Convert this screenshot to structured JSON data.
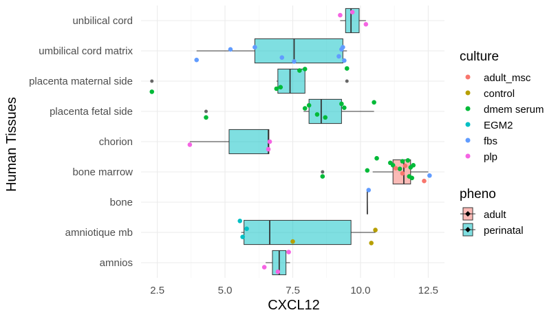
{
  "chart_data": {
    "type": "boxplot",
    "orientation": "horizontal",
    "xlabel": "CXCL12",
    "ylabel": "Human Tissues",
    "xlim": [
      1.9,
      13.1
    ],
    "x_ticks": [
      2.5,
      5.0,
      7.5,
      10.0,
      12.5
    ],
    "x_tick_labels": [
      "2.5",
      "5.0",
      "7.5",
      "10.0",
      "12.5"
    ],
    "grid": true,
    "legend_position": "right",
    "categories": [
      "amnios",
      "amniotique mb",
      "bone",
      "bone marrow",
      "chorion",
      "placenta fetal side",
      "placenta maternal side",
      "umbilical cord matrix",
      "unbilical cord"
    ],
    "pheno_legend": {
      "title": "pheno",
      "items": [
        {
          "label": "adult",
          "color": "#F8766D"
        },
        {
          "label": "perinatal",
          "color": "#00BFC4"
        }
      ]
    },
    "culture_legend": {
      "title": "culture",
      "items": [
        {
          "label": "adult_msc",
          "color": "#F8766D"
        },
        {
          "label": "control",
          "color": "#B79F00"
        },
        {
          "label": "dmem serum",
          "color": "#00BA38"
        },
        {
          "label": "EGM2",
          "color": "#00BFC4"
        },
        {
          "label": "fbs",
          "color": "#619CFF"
        },
        {
          "label": "plp",
          "color": "#F564E3"
        }
      ]
    },
    "boxes": [
      {
        "tissue": "amnios",
        "pheno": "perinatal",
        "min": 6.5,
        "q1": 6.75,
        "median": 7.0,
        "q3": 7.25,
        "max": 7.4
      },
      {
        "tissue": "amniotique mb",
        "pheno": "perinatal",
        "min": 5.6,
        "q1": 5.7,
        "median": 6.65,
        "q3": 9.65,
        "max": 10.55
      },
      {
        "tissue": "bone",
        "pheno": "perinatal",
        "min": 10.25,
        "q1": 10.25,
        "median": 10.25,
        "q3": 10.25,
        "max": 10.25
      },
      {
        "tissue": "bone marrow",
        "pheno": "adult",
        "min": 10.45,
        "q1": 11.2,
        "median": 11.6,
        "q3": 11.85,
        "max": 12.5
      },
      {
        "tissue": "chorion",
        "pheno": "perinatal",
        "min": 3.7,
        "q1": 5.15,
        "median": 6.6,
        "q3": 6.62,
        "max": 6.65
      },
      {
        "tissue": "placenta fetal side",
        "pheno": "perinatal",
        "min": 7.9,
        "q1": 8.1,
        "median": 8.55,
        "q3": 9.3,
        "max": 10.5
      },
      {
        "tissue": "placenta maternal side",
        "pheno": "perinatal",
        "min": 6.9,
        "q1": 6.95,
        "median": 7.4,
        "q3": 7.95,
        "max": 7.95
      },
      {
        "tissue": "umbilical cord matrix",
        "pheno": "perinatal",
        "min": 3.95,
        "q1": 6.1,
        "median": 7.55,
        "q3": 9.35,
        "max": 9.5
      },
      {
        "tissue": "unbilical cord",
        "pheno": "perinatal",
        "min": 9.25,
        "q1": 9.45,
        "median": 9.65,
        "q3": 9.95,
        "max": 10.2
      }
    ],
    "outliers": [
      {
        "tissue": "bone marrow",
        "x": 8.6
      },
      {
        "tissue": "placenta fetal side",
        "x": 4.3
      },
      {
        "tissue": "placenta maternal side",
        "x": 2.3
      },
      {
        "tissue": "placenta maternal side",
        "x": 9.5
      }
    ],
    "points": [
      {
        "tissue": "amnios",
        "culture": "plp",
        "x": 6.45,
        "dy": -0.15
      },
      {
        "tissue": "amnios",
        "culture": "plp",
        "x": 7.35,
        "dy": 0.35
      },
      {
        "tissue": "amnios",
        "culture": "plp",
        "x": 6.95,
        "dy": -0.3
      },
      {
        "tissue": "amniotique mb",
        "culture": "EGM2",
        "x": 5.55,
        "dy": 0.38
      },
      {
        "tissue": "amniotique mb",
        "culture": "EGM2",
        "x": 5.8,
        "dy": 0.12
      },
      {
        "tissue": "amniotique mb",
        "culture": "EGM2",
        "x": 5.65,
        "dy": -0.15
      },
      {
        "tissue": "amniotique mb",
        "culture": "control",
        "x": 7.5,
        "dy": -0.3
      },
      {
        "tissue": "amniotique mb",
        "culture": "control",
        "x": 10.55,
        "dy": 0.08
      },
      {
        "tissue": "amniotique mb",
        "culture": "control",
        "x": 10.4,
        "dy": -0.35
      },
      {
        "tissue": "bone",
        "culture": "fbs",
        "x": 10.3,
        "dy": 0.4
      },
      {
        "tissue": "bone marrow",
        "culture": "dmem serum",
        "x": 8.6,
        "dy": -0.15
      },
      {
        "tissue": "bone marrow",
        "culture": "dmem serum",
        "x": 10.25,
        "dy": 0.05
      },
      {
        "tissue": "bone marrow",
        "culture": "dmem serum",
        "x": 10.6,
        "dy": 0.45
      },
      {
        "tissue": "bone marrow",
        "culture": "dmem serum",
        "x": 11.1,
        "dy": 0.3
      },
      {
        "tissue": "bone marrow",
        "culture": "dmem serum",
        "x": 11.2,
        "dy": 0.22
      },
      {
        "tissue": "bone marrow",
        "culture": "dmem serum",
        "x": 11.45,
        "dy": 0.1
      },
      {
        "tissue": "bone marrow",
        "culture": "dmem serum",
        "x": 11.55,
        "dy": 0.35
      },
      {
        "tissue": "bone marrow",
        "culture": "dmem serum",
        "x": 11.75,
        "dy": 0.38
      },
      {
        "tissue": "bone marrow",
        "culture": "dmem serum",
        "x": 11.85,
        "dy": 0.15
      },
      {
        "tissue": "bone marrow",
        "culture": "dmem serum",
        "x": 11.95,
        "dy": 0.22
      },
      {
        "tissue": "bone marrow",
        "culture": "dmem serum",
        "x": 11.8,
        "dy": -0.15
      },
      {
        "tissue": "bone marrow",
        "culture": "dmem serum",
        "x": 11.9,
        "dy": -0.2
      },
      {
        "tissue": "bone marrow",
        "culture": "adult_msc",
        "x": 11.3,
        "dy": 0.12
      },
      {
        "tissue": "bone marrow",
        "culture": "adult_msc",
        "x": 11.55,
        "dy": -0.05
      },
      {
        "tissue": "bone marrow",
        "culture": "adult_msc",
        "x": 11.65,
        "dy": 0.2
      },
      {
        "tissue": "bone marrow",
        "culture": "adult_msc",
        "x": 12.35,
        "dy": -0.3
      },
      {
        "tissue": "bone marrow",
        "culture": "fbs",
        "x": 12.55,
        "dy": -0.12
      },
      {
        "tissue": "chorion",
        "culture": "plp",
        "x": 3.7,
        "dy": -0.1
      },
      {
        "tissue": "chorion",
        "culture": "plp",
        "x": 6.65,
        "dy": 0.0
      },
      {
        "tissue": "chorion",
        "culture": "plp",
        "x": 6.6,
        "dy": -0.25
      },
      {
        "tissue": "placenta fetal side",
        "culture": "dmem serum",
        "x": 4.3,
        "dy": -0.2
      },
      {
        "tissue": "placenta fetal side",
        "culture": "dmem serum",
        "x": 7.95,
        "dy": 0.1
      },
      {
        "tissue": "placenta fetal side",
        "culture": "dmem serum",
        "x": 8.1,
        "dy": 0.2
      },
      {
        "tissue": "placenta fetal side",
        "culture": "dmem serum",
        "x": 8.4,
        "dy": -0.1
      },
      {
        "tissue": "placenta fetal side",
        "culture": "dmem serum",
        "x": 8.7,
        "dy": -0.2
      },
      {
        "tissue": "placenta fetal side",
        "culture": "dmem serum",
        "x": 9.3,
        "dy": 0.25
      },
      {
        "tissue": "placenta fetal side",
        "culture": "dmem serum",
        "x": 9.4,
        "dy": 0.12
      },
      {
        "tissue": "placenta fetal side",
        "culture": "dmem serum",
        "x": 10.5,
        "dy": 0.3
      },
      {
        "tissue": "placenta maternal side",
        "culture": "dmem serum",
        "x": 2.3,
        "dy": -0.35
      },
      {
        "tissue": "placenta maternal side",
        "culture": "dmem serum",
        "x": 6.9,
        "dy": -0.25
      },
      {
        "tissue": "placenta maternal side",
        "culture": "dmem serum",
        "x": 7.05,
        "dy": -0.2
      },
      {
        "tissue": "placenta maternal side",
        "culture": "dmem serum",
        "x": 7.75,
        "dy": 0.35
      },
      {
        "tissue": "placenta maternal side",
        "culture": "dmem serum",
        "x": 7.95,
        "dy": 0.4
      },
      {
        "tissue": "placenta maternal side",
        "culture": "dmem serum",
        "x": 9.5,
        "dy": 0.42
      },
      {
        "tissue": "umbilical cord matrix",
        "culture": "fbs",
        "x": 3.95,
        "dy": -0.3
      },
      {
        "tissue": "umbilical cord matrix",
        "culture": "fbs",
        "x": 5.2,
        "dy": 0.05
      },
      {
        "tissue": "umbilical cord matrix",
        "culture": "fbs",
        "x": 6.1,
        "dy": 0.12
      },
      {
        "tissue": "umbilical cord matrix",
        "culture": "fbs",
        "x": 7.1,
        "dy": -0.22
      },
      {
        "tissue": "umbilical cord matrix",
        "culture": "fbs",
        "x": 7.55,
        "dy": -0.35
      },
      {
        "tissue": "umbilical cord matrix",
        "culture": "fbs",
        "x": 9.2,
        "dy": -0.18
      },
      {
        "tissue": "umbilical cord matrix",
        "culture": "fbs",
        "x": 9.3,
        "dy": 0.05
      },
      {
        "tissue": "umbilical cord matrix",
        "culture": "fbs",
        "x": 9.35,
        "dy": 0.12
      },
      {
        "tissue": "umbilical cord matrix",
        "culture": "fbs",
        "x": 9.4,
        "dy": -0.32
      },
      {
        "tissue": "unbilical cord",
        "culture": "plp",
        "x": 9.25,
        "dy": 0.18
      },
      {
        "tissue": "unbilical cord",
        "culture": "plp",
        "x": 9.7,
        "dy": 0.28
      },
      {
        "tissue": "unbilical cord",
        "culture": "plp",
        "x": 10.2,
        "dy": -0.12
      }
    ]
  }
}
